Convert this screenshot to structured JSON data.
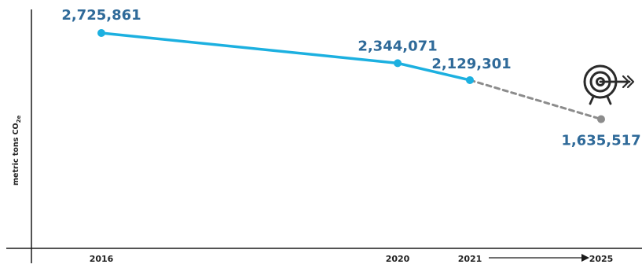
{
  "chart_data": {
    "type": "line",
    "ylabel": "metric tons CO",
    "ylabel_subscript": "2e",
    "ylim": [
      0,
      2900000
    ],
    "grid": false,
    "series": [
      {
        "style": "solid",
        "color": "#1cb0e0",
        "points": [
          {
            "x": 2016,
            "y": 2725861,
            "label": "2,725,861"
          },
          {
            "x": 2020,
            "y": 2344071,
            "label": "2,344,071"
          },
          {
            "x": 2021,
            "y": 2129301,
            "label": "2,129,301"
          }
        ]
      },
      {
        "style": "dashed",
        "color": "#8c8c8c",
        "points": [
          {
            "x": 2021,
            "y": 2129301
          },
          {
            "x": 2025,
            "y": 1635517,
            "label": "1,635,517"
          }
        ]
      }
    ],
    "x_ticks": [
      "2016",
      "2020",
      "2021",
      "2025"
    ],
    "target_icon": "target-with-arrow-icon",
    "arrow_icon": "right-arrow-icon"
  }
}
